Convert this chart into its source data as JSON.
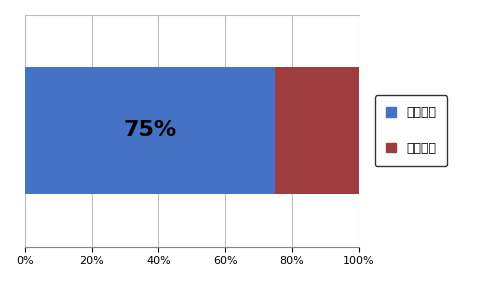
{
  "bar_value_1": 0.75,
  "bar_value_2": 0.25,
  "bar_color_1": "#4472C4",
  "bar_color_2": "#9E3D3D",
  "label_1": "平日開催",
  "label_2": "休日開催",
  "annotation_text": "75%",
  "annotation_fontsize": 16,
  "xlim": [
    0,
    1
  ],
  "xticks": [
    0.0,
    0.2,
    0.4,
    0.6,
    0.8,
    1.0
  ],
  "xtick_labels": [
    "0%",
    "20%",
    "40%",
    "60%",
    "80%",
    "100%"
  ],
  "background_color": "#FFFFFF",
  "grid_color": "#BEBEBE",
  "bar_height": 0.55,
  "legend_fontsize": 9,
  "tick_fontsize": 8
}
